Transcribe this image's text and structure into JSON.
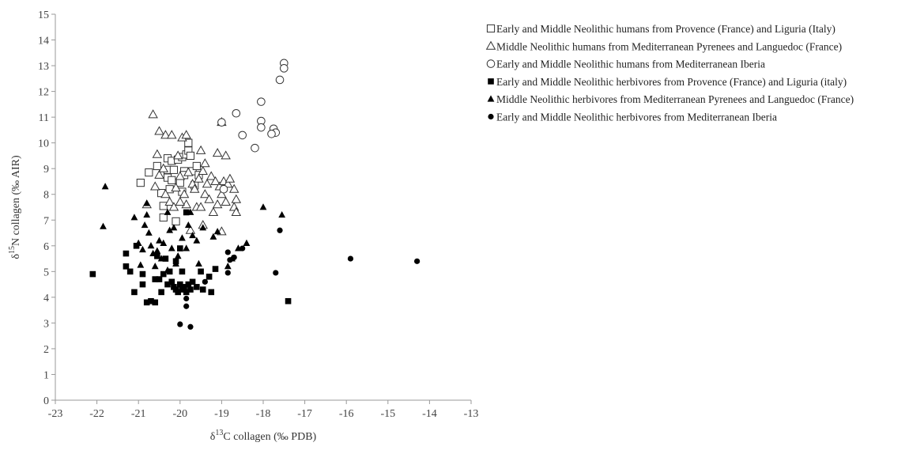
{
  "chart_data": {
    "type": "scatter",
    "title": "",
    "xlabel_parts": [
      "δ",
      "13",
      "C collagen (‰ PDB)"
    ],
    "ylabel_parts": [
      "δ",
      "15",
      "N collagen (‰ AIR)"
    ],
    "xlim": [
      -23,
      -13
    ],
    "ylim": [
      0,
      15
    ],
    "xticks": [
      -23,
      -22,
      -21,
      -20,
      -19,
      -18,
      -17,
      -16,
      -15,
      -14,
      -13
    ],
    "yticks": [
      0,
      1,
      2,
      3,
      4,
      5,
      6,
      7,
      8,
      9,
      10,
      11,
      12,
      13,
      14,
      15
    ],
    "grid": false,
    "legend_position": "right",
    "series": [
      {
        "name": "Early and Middle Neolithic humans from Provence (France) and Liguria (Italy)",
        "marker": "square-open",
        "points": [
          [
            -20.95,
            8.45
          ],
          [
            -20.75,
            8.85
          ],
          [
            -20.55,
            9.1
          ],
          [
            -20.45,
            8.05
          ],
          [
            -20.4,
            7.1
          ],
          [
            -20.4,
            7.55
          ],
          [
            -20.3,
            8.65
          ],
          [
            -20.3,
            8.95
          ],
          [
            -20.3,
            9.4
          ],
          [
            -20.25,
            8.2
          ],
          [
            -20.2,
            8.55
          ],
          [
            -20.2,
            9.3
          ],
          [
            -20.15,
            8.95
          ],
          [
            -20.1,
            6.95
          ],
          [
            -20.05,
            9.35
          ],
          [
            -20.0,
            8.45
          ],
          [
            -19.95,
            9.45
          ],
          [
            -19.9,
            8.9
          ],
          [
            -19.9,
            8.75
          ],
          [
            -19.85,
            9.55
          ],
          [
            -19.8,
            10.0
          ],
          [
            -19.8,
            9.7
          ],
          [
            -19.75,
            9.5
          ],
          [
            -19.7,
            8.9
          ],
          [
            -19.65,
            8.35
          ],
          [
            -19.6,
            9.1
          ],
          [
            -19.55,
            8.75
          ],
          [
            -19.95,
            8.1
          ]
        ]
      },
      {
        "name": "Middle Neolithic humans from Mediterranean Pyrenees and Languedoc (France)",
        "marker": "triangle-open",
        "points": [
          [
            -20.65,
            11.1
          ],
          [
            -20.5,
            10.45
          ],
          [
            -20.35,
            10.3
          ],
          [
            -20.2,
            10.3
          ],
          [
            -19.95,
            10.2
          ],
          [
            -19.85,
            10.3
          ],
          [
            -19.0,
            10.8
          ],
          [
            -20.8,
            7.6
          ],
          [
            -20.6,
            8.3
          ],
          [
            -20.5,
            8.75
          ],
          [
            -20.4,
            9.0
          ],
          [
            -20.35,
            8.0
          ],
          [
            -20.25,
            7.7
          ],
          [
            -20.15,
            7.5
          ],
          [
            -20.1,
            8.25
          ],
          [
            -20.05,
            9.5
          ],
          [
            -20.0,
            8.7
          ],
          [
            -19.9,
            8.0
          ],
          [
            -19.85,
            7.6
          ],
          [
            -19.8,
            8.85
          ],
          [
            -19.75,
            6.6
          ],
          [
            -19.7,
            8.4
          ],
          [
            -19.65,
            8.2
          ],
          [
            -19.6,
            7.5
          ],
          [
            -19.55,
            8.6
          ],
          [
            -19.5,
            9.7
          ],
          [
            -19.5,
            7.5
          ],
          [
            -19.45,
            8.9
          ],
          [
            -19.4,
            8.0
          ],
          [
            -19.4,
            9.2
          ],
          [
            -19.35,
            8.4
          ],
          [
            -19.3,
            7.8
          ],
          [
            -19.25,
            8.7
          ],
          [
            -19.2,
            7.3
          ],
          [
            -19.15,
            8.5
          ],
          [
            -19.1,
            9.6
          ],
          [
            -19.1,
            7.6
          ],
          [
            -19.05,
            8.3
          ],
          [
            -19.0,
            8.0
          ],
          [
            -18.95,
            8.5
          ],
          [
            -18.9,
            7.7
          ],
          [
            -18.9,
            9.5
          ],
          [
            -18.85,
            8.4
          ],
          [
            -18.8,
            8.6
          ],
          [
            -18.7,
            7.5
          ],
          [
            -18.65,
            7.3
          ],
          [
            -18.7,
            8.2
          ],
          [
            -18.65,
            7.8
          ],
          [
            -19.0,
            6.55
          ],
          [
            -19.45,
            6.8
          ],
          [
            -20.55,
            9.55
          ],
          [
            -20.0,
            7.7
          ]
        ]
      },
      {
        "name": "Early and Middle Neolithic humans from Mediterranean Iberia",
        "marker": "circle-open",
        "points": [
          [
            -17.5,
            13.1
          ],
          [
            -17.5,
            12.9
          ],
          [
            -17.6,
            12.45
          ],
          [
            -18.05,
            11.6
          ],
          [
            -18.65,
            11.15
          ],
          [
            -18.05,
            10.85
          ],
          [
            -19.0,
            10.8
          ],
          [
            -18.05,
            10.6
          ],
          [
            -17.75,
            10.55
          ],
          [
            -17.7,
            10.4
          ],
          [
            -17.8,
            10.35
          ],
          [
            -18.5,
            10.3
          ],
          [
            -18.2,
            9.8
          ],
          [
            -18.95,
            8.2
          ]
        ]
      },
      {
        "name": "Early and Middle Neolithic herbivores from Provence (France) and Liguria (italy)",
        "marker": "square-filled",
        "points": [
          [
            -22.1,
            4.9
          ],
          [
            -21.3,
            5.7
          ],
          [
            -21.3,
            5.2
          ],
          [
            -21.2,
            5.0
          ],
          [
            -21.1,
            4.2
          ],
          [
            -21.05,
            6.0
          ],
          [
            -20.9,
            4.9
          ],
          [
            -20.9,
            4.5
          ],
          [
            -20.8,
            3.8
          ],
          [
            -20.7,
            3.85
          ],
          [
            -20.6,
            3.8
          ],
          [
            -20.6,
            4.7
          ],
          [
            -20.55,
            5.6
          ],
          [
            -20.5,
            4.7
          ],
          [
            -20.45,
            4.2
          ],
          [
            -20.4,
            4.9
          ],
          [
            -20.35,
            5.5
          ],
          [
            -20.3,
            4.5
          ],
          [
            -20.25,
            5.0
          ],
          [
            -20.2,
            4.6
          ],
          [
            -20.15,
            4.4
          ],
          [
            -20.1,
            4.3
          ],
          [
            -20.1,
            5.4
          ],
          [
            -20.05,
            4.2
          ],
          [
            -20.0,
            4.5
          ],
          [
            -19.95,
            4.3
          ],
          [
            -19.95,
            5.0
          ],
          [
            -19.9,
            4.4
          ],
          [
            -19.85,
            4.2
          ],
          [
            -19.8,
            4.5
          ],
          [
            -19.75,
            4.3
          ],
          [
            -19.7,
            4.6
          ],
          [
            -19.6,
            4.4
          ],
          [
            -19.5,
            5.0
          ],
          [
            -19.45,
            4.3
          ],
          [
            -19.3,
            4.8
          ],
          [
            -19.25,
            4.2
          ],
          [
            -19.15,
            5.1
          ],
          [
            -19.85,
            7.3
          ],
          [
            -20.0,
            5.9
          ],
          [
            -17.4,
            3.85
          ]
        ]
      },
      {
        "name": "Middle Neolithic herbivores from Mediterranean Pyrenees and Languedoc (France)",
        "marker": "triangle-filled",
        "points": [
          [
            -21.8,
            8.3
          ],
          [
            -21.85,
            6.75
          ],
          [
            -21.1,
            7.1
          ],
          [
            -20.8,
            7.65
          ],
          [
            -20.8,
            7.2
          ],
          [
            -21.0,
            6.1
          ],
          [
            -20.9,
            5.85
          ],
          [
            -20.85,
            6.8
          ],
          [
            -20.75,
            6.5
          ],
          [
            -20.7,
            6.0
          ],
          [
            -20.65,
            5.7
          ],
          [
            -20.6,
            5.2
          ],
          [
            -20.55,
            5.8
          ],
          [
            -20.5,
            6.2
          ],
          [
            -20.45,
            5.5
          ],
          [
            -20.4,
            6.1
          ],
          [
            -20.3,
            7.3
          ],
          [
            -20.25,
            6.6
          ],
          [
            -20.2,
            5.9
          ],
          [
            -20.15,
            6.7
          ],
          [
            -20.1,
            5.3
          ],
          [
            -20.05,
            5.6
          ],
          [
            -19.95,
            6.3
          ],
          [
            -19.85,
            5.9
          ],
          [
            -19.8,
            6.8
          ],
          [
            -19.75,
            7.3
          ],
          [
            -19.7,
            6.4
          ],
          [
            -19.6,
            6.2
          ],
          [
            -19.55,
            5.3
          ],
          [
            -19.45,
            6.7
          ],
          [
            -19.2,
            6.35
          ],
          [
            -19.1,
            6.55
          ],
          [
            -18.85,
            5.2
          ],
          [
            -18.75,
            5.5
          ],
          [
            -18.6,
            5.9
          ],
          [
            -18.4,
            6.1
          ],
          [
            -18.0,
            7.5
          ],
          [
            -17.55,
            7.2
          ],
          [
            -20.95,
            5.25
          ],
          [
            -20.3,
            5.05
          ]
        ]
      },
      {
        "name": "Early and Middle Neolithic herbivores from Mediterranean Iberia",
        "marker": "circle-filled",
        "points": [
          [
            -20.0,
            2.95
          ],
          [
            -19.75,
            2.85
          ],
          [
            -19.85,
            3.65
          ],
          [
            -19.85,
            3.95
          ],
          [
            -19.4,
            4.6
          ],
          [
            -18.85,
            5.75
          ],
          [
            -18.8,
            5.45
          ],
          [
            -18.85,
            4.95
          ],
          [
            -18.7,
            5.55
          ],
          [
            -18.5,
            5.9
          ],
          [
            -17.7,
            4.95
          ],
          [
            -17.6,
            6.6
          ],
          [
            -15.9,
            5.5
          ],
          [
            -14.3,
            5.4
          ]
        ]
      }
    ]
  }
}
